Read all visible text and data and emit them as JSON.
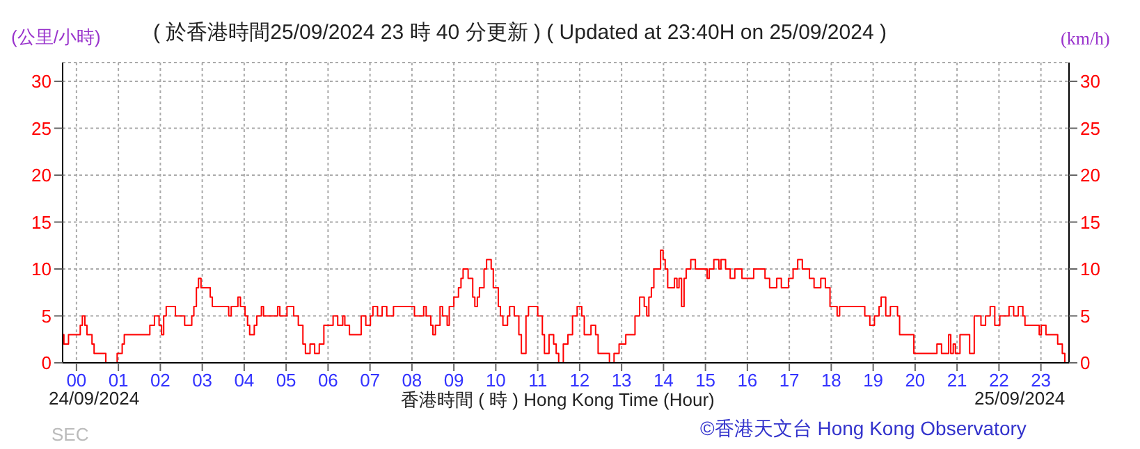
{
  "chart_data": {
    "type": "step",
    "title": "( 於香港時間25/09/2024 23 時 40 分更新 ) ( Updated at 23:40H on 25/09/2024 )",
    "xlabel": "香港時間 ( 時 ) Hong Kong Time (Hour)",
    "ylabel": "(公里/小時)",
    "y2label": "(km/h)",
    "annotations": [
      "24/09/2024",
      "25/09/2024",
      "©香港天文台 Hong Kong Observatory",
      "SEC"
    ],
    "x": [
      -0.33,
      -0.3,
      -0.19,
      0.09,
      0.14,
      0.2,
      0.25,
      0.37,
      0.42,
      0.7,
      0.97,
      1.09,
      1.14,
      1.75,
      1.86,
      1.97,
      2.03,
      2.08,
      2.14,
      2.36,
      2.58,
      2.75,
      2.8,
      2.86,
      2.91,
      2.97,
      3.19,
      3.24,
      3.63,
      3.69,
      3.85,
      3.91,
      4.02,
      4.08,
      4.13,
      4.24,
      4.3,
      4.41,
      4.46,
      4.8,
      4.85,
      5.02,
      5.18,
      5.29,
      5.4,
      5.46,
      5.57,
      5.68,
      5.79,
      5.9,
      6.12,
      6.23,
      6.35,
      6.4,
      6.51,
      6.79,
      6.9,
      7.01,
      7.07,
      7.18,
      7.29,
      7.4,
      7.56,
      8.06,
      8.28,
      8.34,
      8.45,
      8.5,
      8.56,
      8.67,
      8.73,
      8.84,
      8.89,
      9.0,
      9.11,
      9.17,
      9.22,
      9.34,
      9.45,
      9.5,
      9.56,
      9.61,
      9.72,
      9.78,
      9.89,
      9.94,
      10.06,
      10.11,
      10.17,
      10.28,
      10.33,
      10.44,
      10.55,
      10.61,
      10.72,
      10.78,
      11.0,
      11.11,
      11.16,
      11.27,
      11.38,
      11.44,
      11.5,
      11.61,
      11.72,
      11.83,
      11.94,
      12.05,
      12.11,
      12.22,
      12.27,
      12.38,
      12.44,
      12.71,
      12.82,
      12.94,
      13.1,
      13.32,
      13.43,
      13.54,
      13.6,
      13.65,
      13.71,
      13.77,
      13.93,
      13.99,
      14.04,
      14.1,
      14.26,
      14.32,
      14.37,
      14.43,
      14.49,
      14.54,
      14.65,
      14.76,
      15.04,
      15.09,
      15.2,
      15.32,
      15.37,
      15.48,
      15.59,
      15.7,
      15.87,
      16.15,
      16.42,
      16.53,
      16.7,
      16.81,
      16.98,
      17.09,
      17.2,
      17.31,
      17.48,
      17.59,
      17.75,
      17.86,
      17.97,
      18.14,
      18.2,
      18.8,
      18.92,
      19.03,
      19.14,
      19.19,
      19.3,
      19.41,
      19.58,
      19.63,
      19.97,
      20.52,
      20.63,
      20.8,
      20.85,
      20.91,
      20.96,
      21.07,
      21.3,
      21.41,
      21.57,
      21.68,
      21.79,
      21.9,
      22.02,
      22.24,
      22.35,
      22.46,
      22.57,
      22.62,
      22.96,
      23.01,
      23.12,
      23.4,
      23.51,
      23.57,
      23.62
    ],
    "values": [
      3,
      2,
      3,
      4,
      5,
      4,
      3,
      2,
      1,
      0,
      1,
      2,
      3,
      4,
      5,
      4,
      3,
      5,
      6,
      5,
      4,
      5,
      6,
      8,
      9,
      8,
      7,
      6,
      5,
      6,
      7,
      6,
      5,
      4,
      3,
      4,
      5,
      6,
      5,
      6,
      5,
      6,
      5,
      4,
      2,
      1,
      2,
      1,
      2,
      4,
      5,
      4,
      5,
      4,
      3,
      5,
      4,
      5,
      6,
      5,
      6,
      5,
      6,
      5,
      6,
      5,
      4,
      3,
      4,
      6,
      5,
      4,
      6,
      7,
      8,
      9,
      10,
      9,
      7,
      6,
      7,
      8,
      10,
      11,
      10,
      8,
      6,
      5,
      4,
      5,
      6,
      5,
      3,
      1,
      5,
      6,
      5,
      3,
      1,
      3,
      2,
      1,
      0,
      2,
      3,
      5,
      6,
      5,
      3,
      3,
      4,
      3,
      1,
      0,
      1,
      2,
      3,
      5,
      7,
      6,
      5,
      7,
      8,
      10,
      12,
      11,
      10,
      8,
      9,
      8,
      9,
      6,
      9,
      10,
      11,
      10,
      9,
      10,
      11,
      10,
      11,
      10,
      9,
      10,
      9,
      10,
      9,
      8,
      9,
      8,
      9,
      10,
      11,
      10,
      9,
      8,
      9,
      8,
      6,
      5,
      6,
      5,
      4,
      5,
      6,
      7,
      5,
      6,
      5,
      3,
      1,
      2,
      1,
      3,
      1,
      2,
      1,
      3,
      1,
      5,
      4,
      5,
      6,
      4,
      5,
      6,
      5,
      6,
      5,
      4,
      3,
      4,
      3,
      2,
      1,
      0,
      0
    ],
    "color": "#ff0000",
    "xlim": [
      -0.33,
      23.67
    ],
    "xticks": [
      {
        "value": 0,
        "label": "00"
      },
      {
        "value": 1,
        "label": "01"
      },
      {
        "value": 2,
        "label": "02"
      },
      {
        "value": 3,
        "label": "03"
      },
      {
        "value": 4,
        "label": "04"
      },
      {
        "value": 5,
        "label": "05"
      },
      {
        "value": 6,
        "label": "06"
      },
      {
        "value": 7,
        "label": "07"
      },
      {
        "value": 8,
        "label": "08"
      },
      {
        "value": 9,
        "label": "09"
      },
      10,
      11,
      12,
      13,
      14,
      15,
      16,
      17,
      18,
      19,
      20,
      21,
      22,
      23
    ],
    "ylim": [
      0,
      32
    ],
    "yticks": [
      0,
      5,
      10,
      15,
      20,
      25,
      30
    ],
    "y2lim": [
      0,
      32
    ],
    "y2ticks": [
      0,
      5,
      10,
      15,
      20,
      25,
      30
    ],
    "grid": true
  }
}
